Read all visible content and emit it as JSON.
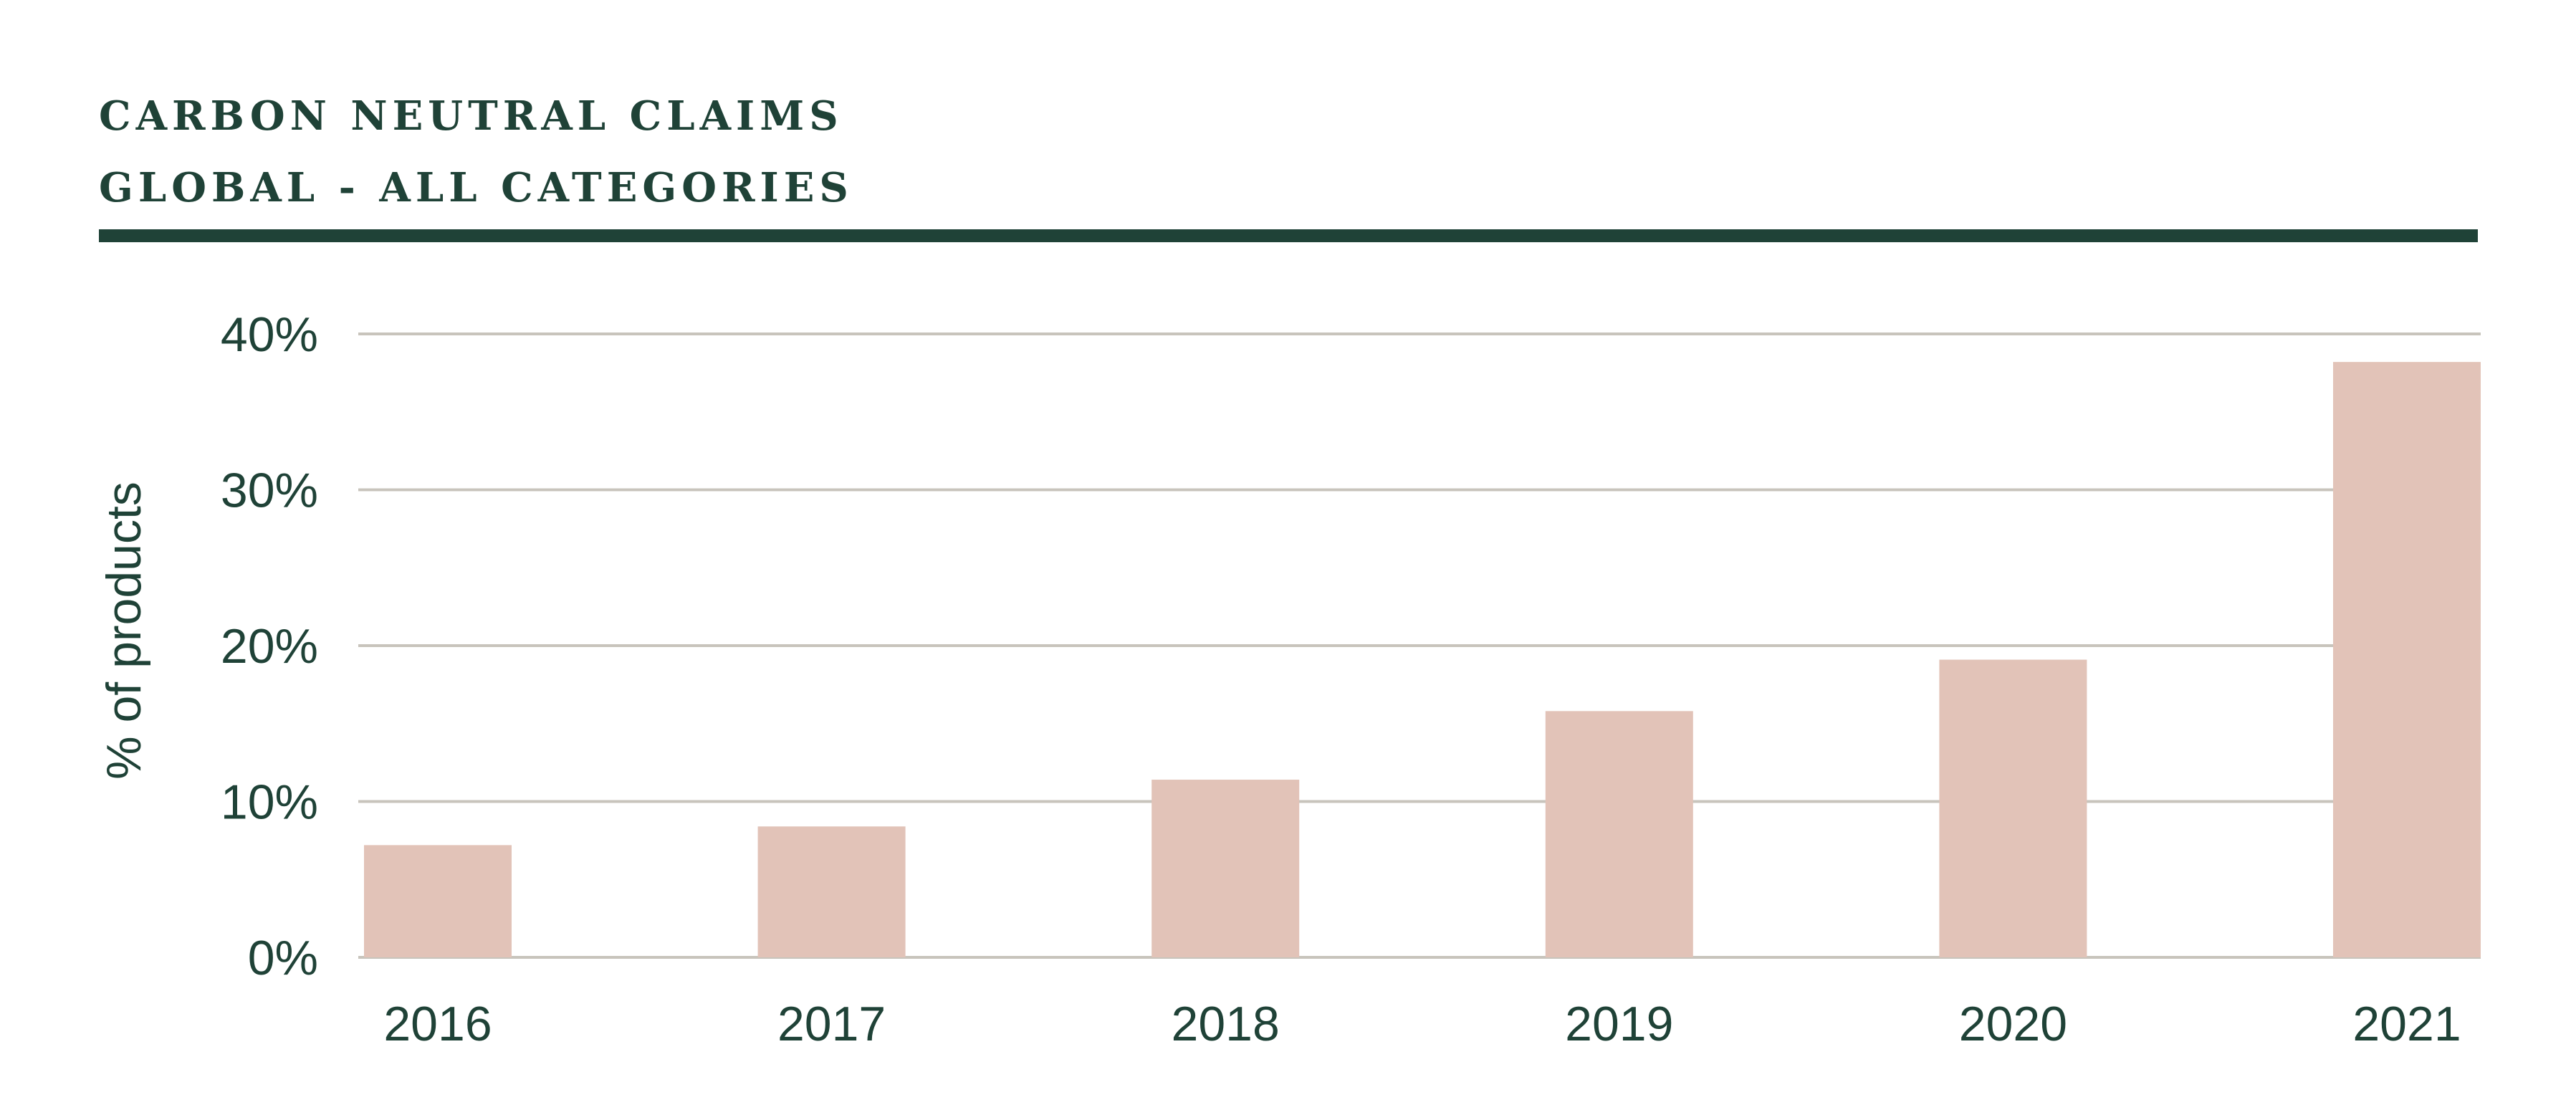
{
  "colors": {
    "title": "#1f4237",
    "rule": "#1f4237",
    "bar": "#e2c3b8",
    "grid": "#c8c4bc",
    "axis_text": "#1f4237"
  },
  "header": {
    "title_line1": "CARBON NEUTRAL CLAIMS",
    "title_line2": "GLOBAL - ALL CATEGORIES"
  },
  "chart_data": {
    "type": "bar",
    "title": "CARBON NEUTRAL CLAIMS",
    "subtitle": "GLOBAL - ALL CATEGORIES",
    "categories": [
      "2016",
      "2017",
      "2018",
      "2019",
      "2020",
      "2021"
    ],
    "values": [
      7.2,
      8.4,
      11.4,
      15.8,
      19.1,
      38.2
    ],
    "xlabel": "",
    "ylabel": "% of products",
    "ylim": [
      0,
      40
    ],
    "yticks": [
      0,
      10,
      20,
      30,
      40
    ],
    "ytick_labels": [
      "0%",
      "10%",
      "20%",
      "30%",
      "40%"
    ],
    "grid": true,
    "legend": "none"
  }
}
